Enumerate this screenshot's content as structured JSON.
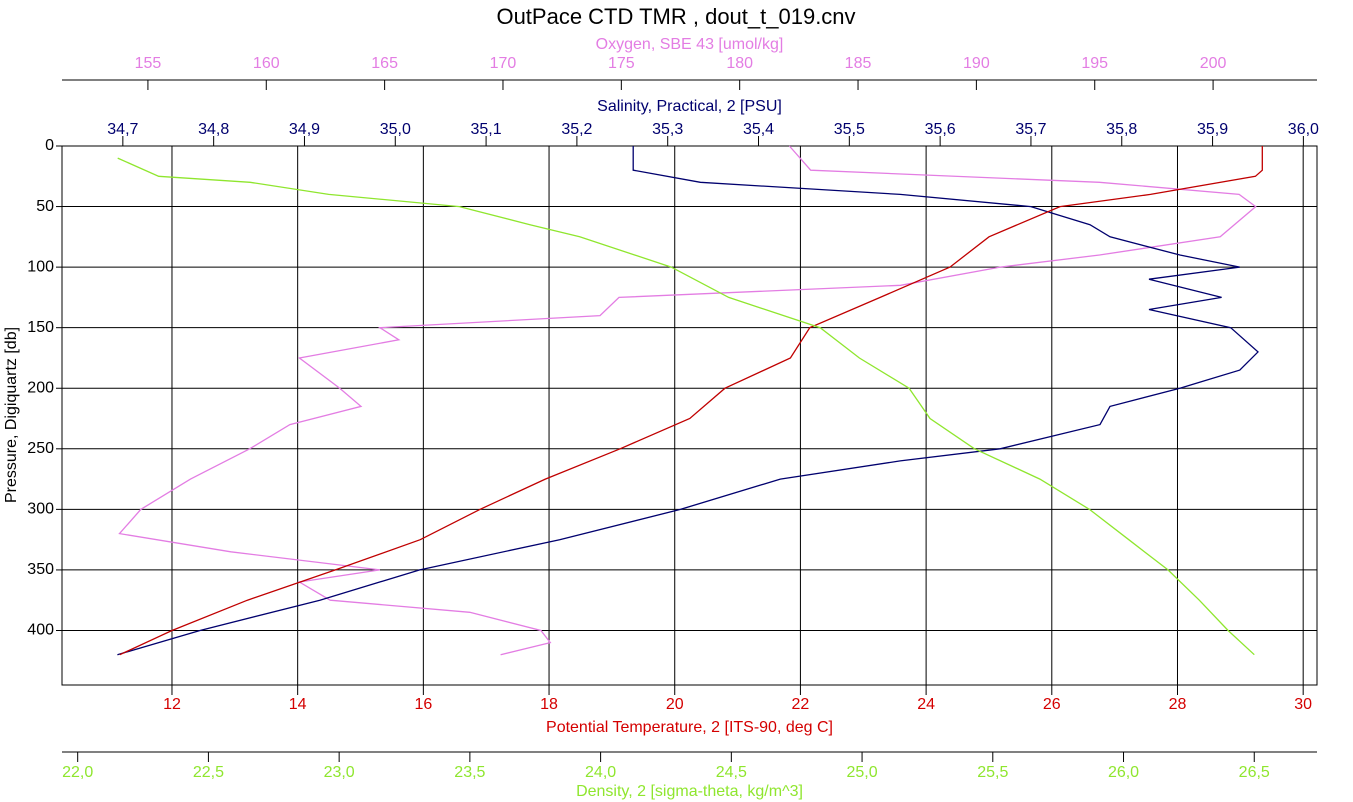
{
  "chart_data": {
    "type": "line",
    "title": "OutPace CTD TMR , dout_t_019.cnv",
    "ylabel": "Pressure, Digiquartz [db]",
    "ylim": [
      0,
      445
    ],
    "yticks": [
      0,
      50,
      100,
      150,
      200,
      250,
      300,
      350,
      400
    ],
    "grid": true,
    "axes": {
      "oxygen": {
        "label": "Oxygen, SBE 43 [umol/kg]",
        "color": "#e37de3",
        "xlim": [
          151.37,
          204.39
        ],
        "xticks": [
          155,
          160,
          165,
          170,
          175,
          180,
          185,
          190,
          195,
          200
        ]
      },
      "salinity": {
        "label": "Salinity, Practical, 2 [PSU]",
        "color": "#00006e",
        "xlim": [
          34.633,
          36.015
        ],
        "xticks": [
          {
            "value": 34.7,
            "label": "34,7"
          },
          {
            "value": 34.8,
            "label": "34,8"
          },
          {
            "value": 34.9,
            "label": "34,9"
          },
          {
            "value": 35.0,
            "label": "35,0"
          },
          {
            "value": 35.1,
            "label": "35,1"
          },
          {
            "value": 35.2,
            "label": "35,2"
          },
          {
            "value": 35.3,
            "label": "35,3"
          },
          {
            "value": 35.4,
            "label": "35,4"
          },
          {
            "value": 35.5,
            "label": "35,5"
          },
          {
            "value": 35.6,
            "label": "35,6"
          },
          {
            "value": 35.7,
            "label": "35,7"
          },
          {
            "value": 35.8,
            "label": "35,8"
          },
          {
            "value": 35.9,
            "label": "35,9"
          },
          {
            "value": 36.0,
            "label": "36,0"
          }
        ]
      },
      "temperature": {
        "label": "Potential Temperature, 2 [ITS-90, deg C]",
        "color": "#d40000",
        "xlim": [
          10.25,
          30.22
        ],
        "xticks": [
          12,
          14,
          16,
          18,
          20,
          22,
          24,
          26,
          28,
          30
        ]
      },
      "density": {
        "label": "Density, 2 [sigma-theta, kg/m^3]",
        "color": "#8fe62e",
        "xlim": [
          21.94,
          26.74
        ],
        "xticks": [
          {
            "value": 22.0,
            "label": "22,0"
          },
          {
            "value": 22.5,
            "label": "22,5"
          },
          {
            "value": 23.0,
            "label": "23,0"
          },
          {
            "value": 23.5,
            "label": "23,5"
          },
          {
            "value": 24.0,
            "label": "24,0"
          },
          {
            "value": 24.5,
            "label": "24,5"
          },
          {
            "value": 25.0,
            "label": "25,0"
          },
          {
            "value": 25.5,
            "label": "25,5"
          },
          {
            "value": 26.0,
            "label": "26,0"
          },
          {
            "value": 26.5,
            "label": "26,5"
          }
        ]
      }
    },
    "series": [
      {
        "name": "Oxygen",
        "axis": "oxygen",
        "color": "#e37de3",
        "pressure": [
          0,
          20,
          30,
          40,
          50,
          75,
          90,
          100,
          115,
          125,
          140,
          150,
          160,
          175,
          200,
          215,
          230,
          250,
          275,
          300,
          320,
          335,
          350,
          360,
          375,
          385,
          400,
          410,
          420
        ],
        "values": [
          182.1,
          183.0,
          195.2,
          201.1,
          201.8,
          200.3,
          195.2,
          191.0,
          186.8,
          174.9,
          174.1,
          164.8,
          165.6,
          161.4,
          163.1,
          164.0,
          161.0,
          159.3,
          156.8,
          154.7,
          153.8,
          158.5,
          164.8,
          161.4,
          162.7,
          168.6,
          171.6,
          172.0,
          169.9
        ]
      },
      {
        "name": "Salinity",
        "axis": "salinity",
        "color": "#00006e",
        "pressure": [
          0,
          20,
          30,
          40,
          50,
          65,
          75,
          90,
          100,
          110,
          125,
          135,
          150,
          170,
          185,
          200,
          215,
          230,
          250,
          260,
          275,
          300,
          325,
          350,
          375,
          400,
          420
        ],
        "values": [
          35.262,
          35.262,
          35.336,
          35.556,
          35.7,
          35.765,
          35.787,
          35.864,
          35.93,
          35.83,
          35.91,
          35.83,
          35.92,
          35.95,
          35.93,
          35.864,
          35.787,
          35.776,
          35.666,
          35.556,
          35.424,
          35.314,
          35.181,
          35.027,
          34.917,
          34.785,
          34.694
        ]
      },
      {
        "name": "Potential Temperature",
        "axis": "temperature",
        "color": "#c00000",
        "pressure": [
          0,
          20,
          25,
          40,
          50,
          75,
          100,
          125,
          150,
          175,
          200,
          225,
          250,
          275,
          300,
          325,
          350,
          375,
          400,
          420
        ],
        "values": [
          29.35,
          29.35,
          29.24,
          27.57,
          26.13,
          25.0,
          24.38,
          23.27,
          22.15,
          21.84,
          20.8,
          20.24,
          19.13,
          17.94,
          16.9,
          15.95,
          14.6,
          13.2,
          12.0,
          11.17
        ]
      },
      {
        "name": "Density",
        "axis": "density",
        "color": "#8fe62e",
        "pressure": [
          10,
          25,
          30,
          40,
          50,
          65,
          75,
          100,
          125,
          150,
          175,
          200,
          225,
          250,
          275,
          300,
          325,
          350,
          375,
          400,
          420
        ],
        "values": [
          22.153,
          22.31,
          22.66,
          22.96,
          23.46,
          23.73,
          23.92,
          24.27,
          24.49,
          24.84,
          24.99,
          25.18,
          25.26,
          25.43,
          25.68,
          25.87,
          26.02,
          26.17,
          26.29,
          26.4,
          26.5
        ]
      }
    ]
  }
}
